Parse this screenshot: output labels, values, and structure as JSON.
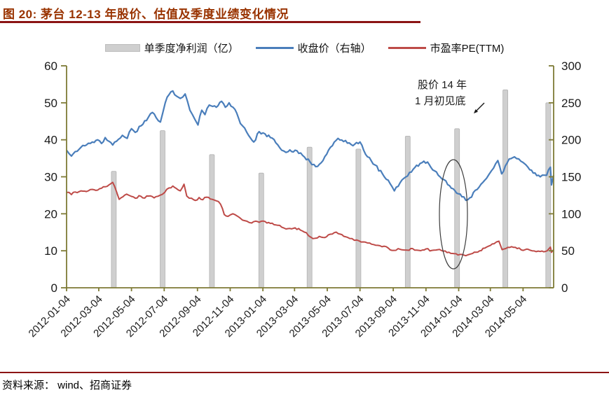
{
  "header": {
    "title": "图 20: 茅台 12-13 年股价、估值及季度业绩变化情况"
  },
  "footer": {
    "source": "资料来源： wind、招商证券"
  },
  "colors": {
    "title": "#993300",
    "rule": "#8B1414",
    "axis": "#7E7A35",
    "tick_label": "#1a1a1a",
    "bar_fill": "#cfcfcf",
    "bar_edge": "#b3b3b3",
    "close_line": "#4A7EBB",
    "pe_line": "#BE4B48"
  },
  "chart_data": {
    "type": "combo",
    "title": "茅台 12-13 年股价、估值及季度业绩变化情况",
    "x_axis": {
      "start": "2012-01-04",
      "end": "2014-06-30",
      "ticks": [
        "2012-01-04",
        "2012-03-04",
        "2012-05-04",
        "2012-07-04",
        "2012-09-04",
        "2012-11-04",
        "2013-01-04",
        "2013-03-04",
        "2013-05-04",
        "2013-07-04",
        "2013-09-04",
        "2013-11-04",
        "2014-01-04",
        "2014-03-04",
        "2014-05-04"
      ]
    },
    "left_axis": {
      "min": 0,
      "max": 60,
      "ticks": [
        0,
        10,
        20,
        30,
        40,
        50,
        60
      ]
    },
    "right_axis": {
      "min": 0,
      "max": 300,
      "ticks": [
        0,
        50,
        100,
        150,
        200,
        250,
        300
      ]
    },
    "annotation": {
      "line1": "股价 14 年",
      "line2": "1 月初见底"
    },
    "series": [
      {
        "name": "单季度净利润（亿）",
        "type": "bar",
        "axis": "left",
        "color": "#cfcfcf",
        "data": [
          [
            "2012-04-01",
            31.5
          ],
          [
            "2012-07-01",
            42.5
          ],
          [
            "2012-10-01",
            36
          ],
          [
            "2013-01-01",
            31
          ],
          [
            "2013-04-01",
            38
          ],
          [
            "2013-07-01",
            37.5
          ],
          [
            "2013-10-01",
            41
          ],
          [
            "2014-01-01",
            43
          ],
          [
            "2014-04-01",
            53.5
          ],
          [
            "2014-06-20",
            50
          ]
        ]
      },
      {
        "name": "收盘价（右轴）",
        "type": "line",
        "axis": "right",
        "color": "#4A7EBB",
        "data": [
          [
            "2012-01-04",
            186
          ],
          [
            "2012-01-13",
            178
          ],
          [
            "2012-01-20",
            184
          ],
          [
            "2012-01-31",
            190
          ],
          [
            "2012-02-10",
            193
          ],
          [
            "2012-02-21",
            197
          ],
          [
            "2012-03-02",
            200
          ],
          [
            "2012-03-09",
            195
          ],
          [
            "2012-03-16",
            203
          ],
          [
            "2012-03-23",
            198
          ],
          [
            "2012-03-30",
            193
          ],
          [
            "2012-04-06",
            198
          ],
          [
            "2012-04-17",
            206
          ],
          [
            "2012-04-26",
            202
          ],
          [
            "2012-05-04",
            215
          ],
          [
            "2012-05-11",
            210
          ],
          [
            "2012-05-22",
            219
          ],
          [
            "2012-06-01",
            226
          ],
          [
            "2012-06-12",
            237
          ],
          [
            "2012-06-19",
            230
          ],
          [
            "2012-06-27",
            224
          ],
          [
            "2012-07-06",
            250
          ],
          [
            "2012-07-13",
            261
          ],
          [
            "2012-07-20",
            266
          ],
          [
            "2012-07-27",
            259
          ],
          [
            "2012-08-03",
            256
          ],
          [
            "2012-08-12",
            262
          ],
          [
            "2012-08-21",
            240
          ],
          [
            "2012-08-30",
            228
          ],
          [
            "2012-09-05",
            220
          ],
          [
            "2012-09-12",
            240
          ],
          [
            "2012-09-18",
            234
          ],
          [
            "2012-09-26",
            247
          ],
          [
            "2012-10-09",
            244
          ],
          [
            "2012-10-19",
            252
          ],
          [
            "2012-10-26",
            244
          ],
          [
            "2012-11-02",
            250
          ],
          [
            "2012-11-13",
            241
          ],
          [
            "2012-11-23",
            222
          ],
          [
            "2012-12-05",
            210
          ],
          [
            "2012-12-18",
            197
          ],
          [
            "2012-12-28",
            211
          ],
          [
            "2013-01-08",
            208
          ],
          [
            "2013-01-18",
            203
          ],
          [
            "2013-01-28",
            196
          ],
          [
            "2013-02-08",
            186
          ],
          [
            "2013-02-20",
            184
          ],
          [
            "2013-03-05",
            186
          ],
          [
            "2013-03-19",
            179
          ],
          [
            "2013-04-02",
            170
          ],
          [
            "2013-04-16",
            164
          ],
          [
            "2013-04-26",
            172
          ],
          [
            "2013-05-10",
            190
          ],
          [
            "2013-05-24",
            202
          ],
          [
            "2013-06-07",
            199
          ],
          [
            "2013-06-21",
            192
          ],
          [
            "2013-07-04",
            197
          ],
          [
            "2013-07-18",
            177
          ],
          [
            "2013-08-01",
            166
          ],
          [
            "2013-08-15",
            154
          ],
          [
            "2013-08-29",
            141
          ],
          [
            "2013-09-06",
            131
          ],
          [
            "2013-09-24",
            148
          ],
          [
            "2013-10-11",
            160
          ],
          [
            "2013-10-24",
            168
          ],
          [
            "2013-11-07",
            170
          ],
          [
            "2013-11-20",
            158
          ],
          [
            "2013-12-04",
            147
          ],
          [
            "2013-12-18",
            138
          ],
          [
            "2013-12-31",
            128
          ],
          [
            "2014-01-10",
            123
          ],
          [
            "2014-01-21",
            119
          ],
          [
            "2014-02-11",
            136
          ],
          [
            "2014-02-25",
            148
          ],
          [
            "2014-03-06",
            158
          ],
          [
            "2014-03-18",
            172
          ],
          [
            "2014-03-25",
            154
          ],
          [
            "2014-04-08",
            174
          ],
          [
            "2014-04-18",
            177
          ],
          [
            "2014-04-30",
            171
          ],
          [
            "2014-05-13",
            163
          ],
          [
            "2014-05-23",
            155
          ],
          [
            "2014-06-05",
            150
          ],
          [
            "2014-06-17",
            152
          ],
          [
            "2014-06-24",
            163
          ],
          [
            "2014-06-26",
            139
          ],
          [
            "2014-06-30",
            152
          ]
        ]
      },
      {
        "name": "市盈率PE(TTM)",
        "type": "line",
        "axis": "left",
        "color": "#BE4B48",
        "data": [
          [
            "2012-01-04",
            25.8
          ],
          [
            "2012-01-13",
            25.2
          ],
          [
            "2012-01-20",
            25.9
          ],
          [
            "2012-01-31",
            26.2
          ],
          [
            "2012-02-10",
            26.0
          ],
          [
            "2012-02-21",
            26.6
          ],
          [
            "2012-03-02",
            26.4
          ],
          [
            "2012-03-09",
            26.9
          ],
          [
            "2012-03-16",
            27.3
          ],
          [
            "2012-03-23",
            27.8
          ],
          [
            "2012-03-30",
            28.5
          ],
          [
            "2012-04-06",
            26.0
          ],
          [
            "2012-04-11",
            23.9
          ],
          [
            "2012-04-18",
            24.6
          ],
          [
            "2012-04-25",
            25.3
          ],
          [
            "2012-05-04",
            24.7
          ],
          [
            "2012-05-11",
            24.2
          ],
          [
            "2012-05-18",
            24.9
          ],
          [
            "2012-05-25",
            24.3
          ],
          [
            "2012-06-05",
            24.8
          ],
          [
            "2012-06-15",
            24.3
          ],
          [
            "2012-06-26",
            25.0
          ],
          [
            "2012-07-05",
            25.8
          ],
          [
            "2012-07-13",
            27.0
          ],
          [
            "2012-07-20",
            27.5
          ],
          [
            "2012-07-27",
            26.8
          ],
          [
            "2012-08-03",
            26.2
          ],
          [
            "2012-08-10",
            28.0
          ],
          [
            "2012-08-15",
            24.8
          ],
          [
            "2012-08-24",
            24.2
          ],
          [
            "2012-08-31",
            23.6
          ],
          [
            "2012-09-07",
            24.4
          ],
          [
            "2012-09-14",
            23.8
          ],
          [
            "2012-09-21",
            24.5
          ],
          [
            "2012-09-28",
            24.0
          ],
          [
            "2012-10-09",
            23.5
          ],
          [
            "2012-10-17",
            22.6
          ],
          [
            "2012-10-24",
            19.8
          ],
          [
            "2012-10-31",
            19.3
          ],
          [
            "2012-11-09",
            20.0
          ],
          [
            "2012-11-16",
            19.5
          ],
          [
            "2012-11-23",
            18.8
          ],
          [
            "2012-12-05",
            18.0
          ],
          [
            "2012-12-14",
            17.5
          ],
          [
            "2012-12-21",
            18.0
          ],
          [
            "2012-12-28",
            17.7
          ],
          [
            "2013-01-08",
            17.9
          ],
          [
            "2013-01-18",
            17.4
          ],
          [
            "2013-01-28",
            17.0
          ],
          [
            "2013-02-08",
            16.4
          ],
          [
            "2013-02-20",
            16.0
          ],
          [
            "2013-03-05",
            16.2
          ],
          [
            "2013-03-15",
            15.6
          ],
          [
            "2013-03-26",
            14.9
          ],
          [
            "2013-04-03",
            13.7
          ],
          [
            "2013-04-12",
            13.4
          ],
          [
            "2013-04-19",
            13.9
          ],
          [
            "2013-04-26",
            13.6
          ],
          [
            "2013-05-06",
            14.3
          ],
          [
            "2013-05-17",
            14.9
          ],
          [
            "2013-05-28",
            14.5
          ],
          [
            "2013-06-07",
            13.8
          ],
          [
            "2013-06-19",
            13.3
          ],
          [
            "2013-06-28",
            12.9
          ],
          [
            "2013-07-10",
            12.4
          ],
          [
            "2013-07-22",
            12.1
          ],
          [
            "2013-08-02",
            11.5
          ],
          [
            "2013-08-14",
            11.1
          ],
          [
            "2013-08-26",
            10.7
          ],
          [
            "2013-09-05",
            10.1
          ],
          [
            "2013-09-17",
            10.4
          ],
          [
            "2013-09-27",
            10.2
          ],
          [
            "2013-10-10",
            10.6
          ],
          [
            "2013-10-22",
            10.1
          ],
          [
            "2013-11-04",
            10.5
          ],
          [
            "2013-11-15",
            10.1
          ],
          [
            "2013-11-26",
            10.3
          ],
          [
            "2013-12-06",
            9.9
          ],
          [
            "2013-12-17",
            9.6
          ],
          [
            "2013-12-30",
            9.2
          ],
          [
            "2014-01-10",
            9.0
          ],
          [
            "2014-01-21",
            8.9
          ],
          [
            "2014-01-30",
            9.3
          ],
          [
            "2014-02-12",
            10.0
          ],
          [
            "2014-02-25",
            11.0
          ],
          [
            "2014-03-11",
            11.9
          ],
          [
            "2014-03-20",
            12.6
          ],
          [
            "2014-03-26",
            10.3
          ],
          [
            "2014-04-09",
            10.9
          ],
          [
            "2014-04-23",
            10.6
          ],
          [
            "2014-05-08",
            10.3
          ],
          [
            "2014-05-21",
            10.0
          ],
          [
            "2014-06-05",
            9.8
          ],
          [
            "2014-06-18",
            10.0
          ],
          [
            "2014-06-24",
            11.0
          ],
          [
            "2014-06-26",
            9.6
          ],
          [
            "2014-06-30",
            10.3
          ]
        ]
      }
    ]
  }
}
